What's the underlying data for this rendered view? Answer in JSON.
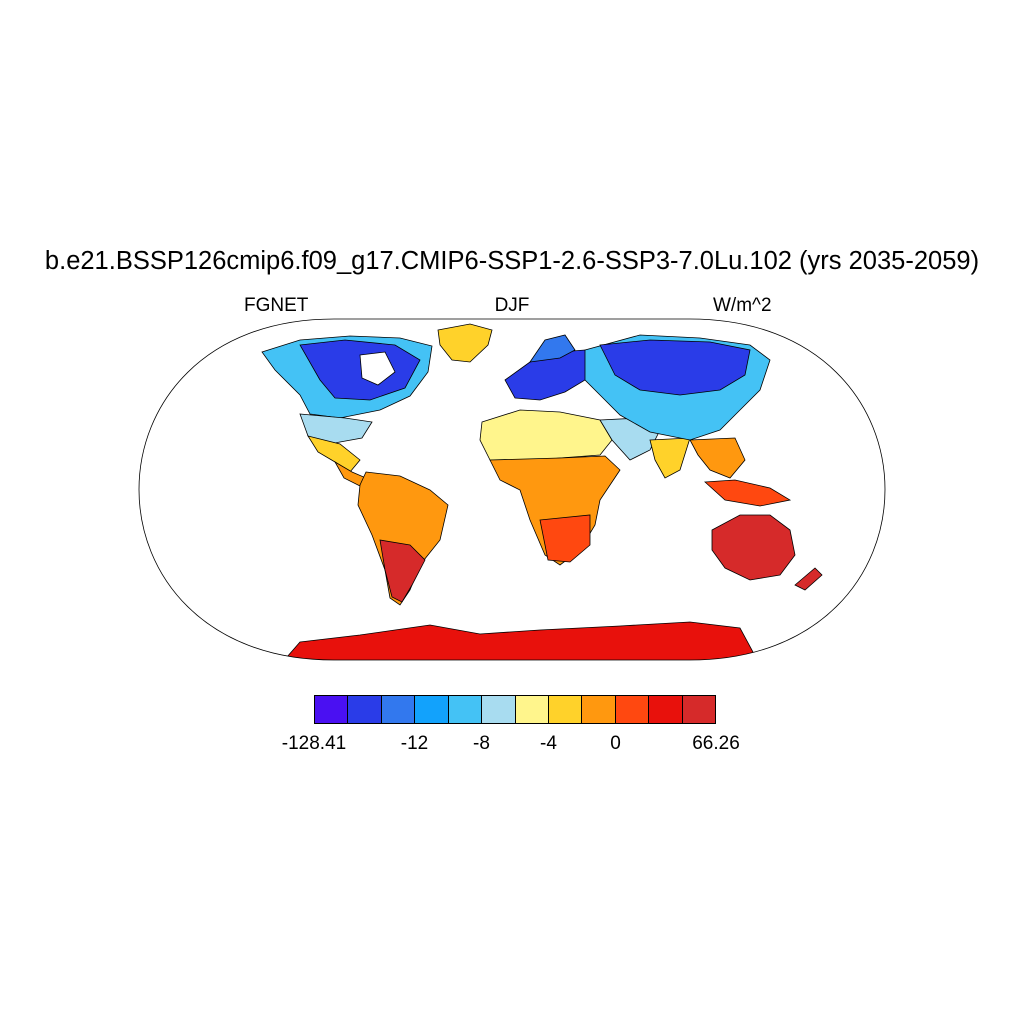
{
  "title": "b.e21.BSSP126cmip6.f09_g17.CMIP6-SSP1-2.6-SSP3-7.0Lu.102 (yrs 2035-2059)",
  "subtitle_left": "FGNET",
  "subtitle_center": "DJF",
  "subtitle_right": "W/m^2",
  "colorbar": {
    "colors": [
      "#4a10f2",
      "#2a3ce8",
      "#3278ee",
      "#12a2fc",
      "#44c2f5",
      "#a8dcf0",
      "#fff58c",
      "#ffd22a",
      "#ff980f",
      "#ff4810",
      "#e8110c",
      "#d62a2a"
    ],
    "labels": [
      {
        "text": "-128.41",
        "boundary": 0
      },
      {
        "text": "-12",
        "boundary": 3
      },
      {
        "text": "-8",
        "boundary": 5
      },
      {
        "text": "-4",
        "boundary": 7
      },
      {
        "text": "0",
        "boundary": 9
      },
      {
        "text": "66.26",
        "boundary": 12
      }
    ]
  }
}
